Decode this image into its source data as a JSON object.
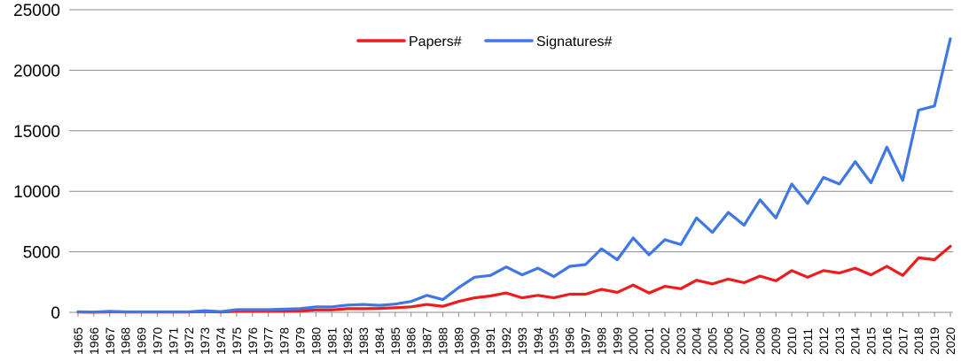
{
  "chart_data": {
    "type": "line",
    "title": "",
    "xlabel": "",
    "ylabel": "",
    "x": [
      1965,
      1966,
      1967,
      1968,
      1969,
      1970,
      1971,
      1972,
      1973,
      1974,
      1975,
      1976,
      1977,
      1978,
      1979,
      1980,
      1981,
      1982,
      1983,
      1984,
      1985,
      1986,
      1987,
      1988,
      1989,
      1990,
      1991,
      1992,
      1993,
      1994,
      1995,
      1996,
      1997,
      1998,
      1999,
      2000,
      2001,
      2002,
      2003,
      2004,
      2005,
      2006,
      2007,
      2008,
      2009,
      2010,
      2011,
      2012,
      2013,
      2014,
      2015,
      2016,
      2017,
      2018,
      2019,
      2020
    ],
    "x_tick_labels": [
      "1965",
      "1966",
      "1967",
      "1968",
      "1969",
      "1970",
      "1971",
      "1972",
      "1973",
      "1974",
      "1975",
      "1976",
      "1977",
      "1978",
      "1979",
      "1980",
      "1981",
      "1982",
      "1983",
      "1984",
      "1985",
      "1986",
      "1987",
      "1988",
      "1989",
      "1990",
      "1991",
      "1992",
      "1993",
      "1994",
      "1995",
      "1996",
      "1997",
      "1998",
      "1999",
      "2000",
      "2001",
      "2002",
      "2003",
      "2004",
      "2005",
      "2006",
      "2007",
      "2008",
      "2009",
      "2010",
      "2011",
      "2012",
      "2013",
      "2014",
      "2015",
      "2016",
      "2017",
      "2018",
      "2019",
      "2020"
    ],
    "ylim": [
      0,
      25000
    ],
    "y_ticks": [
      0,
      5000,
      10000,
      15000,
      20000,
      25000
    ],
    "y_tick_labels": [
      "0",
      "5000",
      "10000",
      "15000",
      "20000",
      "25000"
    ],
    "grid": "horizontal",
    "legend": "top-center",
    "series": [
      {
        "name": "Papers#",
        "color": "#ee1c1c",
        "values": [
          20,
          10,
          40,
          20,
          20,
          20,
          20,
          20,
          60,
          30,
          80,
          80,
          80,
          100,
          120,
          200,
          200,
          300,
          300,
          320,
          380,
          450,
          650,
          500,
          900,
          1200,
          1350,
          1600,
          1200,
          1400,
          1200,
          1500,
          1500,
          1900,
          1650,
          2250,
          1600,
          2150,
          1950,
          2650,
          2350,
          2750,
          2450,
          3000,
          2600,
          3450,
          2900,
          3450,
          3250,
          3650,
          3100,
          3800,
          3050,
          4500,
          4350,
          5450
        ]
      },
      {
        "name": "Signatures#",
        "color": "#3f78e6",
        "values": [
          50,
          20,
          80,
          40,
          40,
          40,
          40,
          40,
          140,
          60,
          220,
          220,
          220,
          260,
          300,
          450,
          450,
          600,
          650,
          580,
          680,
          900,
          1400,
          1050,
          2050,
          2900,
          3050,
          3750,
          3100,
          3650,
          2950,
          3800,
          3950,
          5250,
          4350,
          6150,
          4750,
          6000,
          5600,
          7800,
          6600,
          8250,
          7200,
          9300,
          7800,
          10600,
          9000,
          11150,
          10600,
          12450,
          10700,
          13650,
          10900,
          16700,
          17050,
          22600
        ]
      }
    ]
  }
}
